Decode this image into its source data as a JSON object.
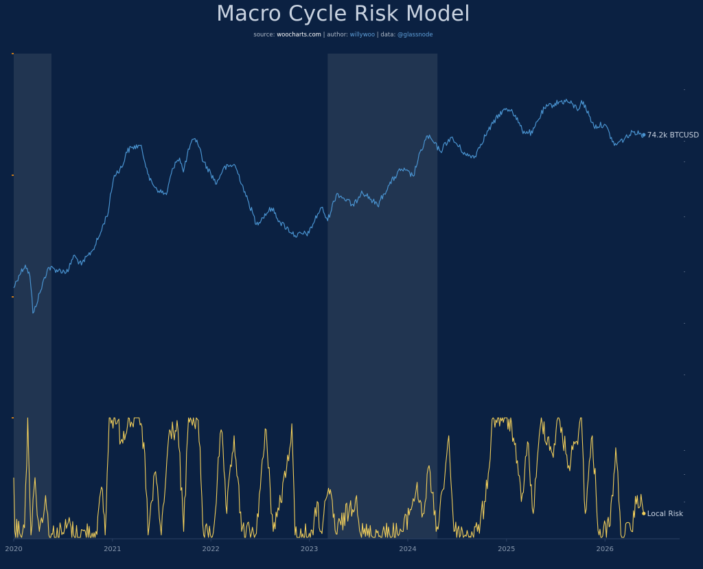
{
  "header": {
    "title": "Macro Cycle Risk Model",
    "subtitle": {
      "source_label": "source: ",
      "source_value": "woocharts.com",
      "sep1": " | author: ",
      "author_value": "willywoo",
      "sep2": " | data: ",
      "data_value": "@glassnode"
    }
  },
  "colors": {
    "background": "#0b2142",
    "price_line": "#4a94d1",
    "risk_line": "#f2cf5b",
    "shaded_region": "#213551",
    "axis_text": "#8898ad",
    "tick_marks": "#c87a1a"
  },
  "chart_data": {
    "type": "line",
    "title": "Macro Cycle Risk Model",
    "x_axis": {
      "tick_labels": [
        "2020",
        "2021",
        "2022",
        "2023",
        "2024",
        "2025",
        "2026"
      ],
      "range": [
        "2020-01-01",
        "2026-12-31"
      ]
    },
    "shaded_regions": [
      {
        "start": "2020-01-01",
        "end": "2020-05-20"
      },
      {
        "start": "2023-03-10",
        "end": "2024-04-20"
      }
    ],
    "series": [
      {
        "name": "BTCUSD",
        "end_label": "74.2k BTCUSD",
        "scale": "log",
        "unit": "USD",
        "points": [
          [
            "2020-01-01",
            7200
          ],
          [
            "2020-01-20",
            8700
          ],
          [
            "2020-02-13",
            10200
          ],
          [
            "2020-03-01",
            8600
          ],
          [
            "2020-03-12",
            4900
          ],
          [
            "2020-03-16",
            5000
          ],
          [
            "2020-04-10",
            6900
          ],
          [
            "2020-05-08",
            9800
          ],
          [
            "2020-06-15",
            9400
          ],
          [
            "2020-07-20",
            9200
          ],
          [
            "2020-08-10",
            11800
          ],
          [
            "2020-09-08",
            10200
          ],
          [
            "2020-10-21",
            12900
          ],
          [
            "2020-11-15",
            16000
          ],
          [
            "2020-12-17",
            23000
          ],
          [
            "2021-01-08",
            40000
          ],
          [
            "2021-02-08",
            46000
          ],
          [
            "2021-02-21",
            57000
          ],
          [
            "2021-03-13",
            61000
          ],
          [
            "2021-04-14",
            63000
          ],
          [
            "2021-05-19",
            37000
          ],
          [
            "2021-06-22",
            31500
          ],
          [
            "2021-07-20",
            29800
          ],
          [
            "2021-08-22",
            49000
          ],
          [
            "2021-09-07",
            52000
          ],
          [
            "2021-09-21",
            42000
          ],
          [
            "2021-10-20",
            66000
          ],
          [
            "2021-11-10",
            68500
          ],
          [
            "2021-12-04",
            49000
          ],
          [
            "2022-01-22",
            35000
          ],
          [
            "2022-02-15",
            44000
          ],
          [
            "2022-03-28",
            47300
          ],
          [
            "2022-05-11",
            29000
          ],
          [
            "2022-06-18",
            18900
          ],
          [
            "2022-08-14",
            24300
          ],
          [
            "2022-09-15",
            19500
          ],
          [
            "2022-11-09",
            16000
          ],
          [
            "2022-12-31",
            16600
          ],
          [
            "2023-02-15",
            24500
          ],
          [
            "2023-03-10",
            20000
          ],
          [
            "2023-04-14",
            30400
          ],
          [
            "2023-06-15",
            25000
          ],
          [
            "2023-07-14",
            31500
          ],
          [
            "2023-09-11",
            25100
          ],
          [
            "2023-10-24",
            34500
          ],
          [
            "2023-12-08",
            44000
          ],
          [
            "2024-01-22",
            39500
          ],
          [
            "2024-03-14",
            73000
          ],
          [
            "2024-05-01",
            57500
          ],
          [
            "2024-06-07",
            71000
          ],
          [
            "2024-08-05",
            54000
          ],
          [
            "2024-09-06",
            53500
          ],
          [
            "2024-11-12",
            88000
          ],
          [
            "2024-12-17",
            107000
          ],
          [
            "2025-01-20",
            109000
          ],
          [
            "2025-02-28",
            79000
          ],
          [
            "2025-04-07",
            76000
          ],
          [
            "2025-05-22",
            111000
          ],
          [
            "2025-07-14",
            122000
          ],
          [
            "2025-08-14",
            124000
          ],
          [
            "2025-09-25",
            109000
          ],
          [
            "2025-10-06",
            125000
          ],
          [
            "2025-11-21",
            84000
          ],
          [
            "2025-12-30",
            87000
          ],
          [
            "2026-02-05",
            63000
          ],
          [
            "2026-03-15",
            70000
          ],
          [
            "2026-04-20",
            78000
          ],
          [
            "2026-05-25",
            74200
          ]
        ]
      },
      {
        "name": "Local Risk",
        "end_label": "Local Risk",
        "scale": "linear",
        "ylim": [
          0,
          1
        ],
        "points": [
          [
            "2020-01-01",
            0.5
          ],
          [
            "2020-01-05",
            0.05
          ],
          [
            "2020-02-10",
            0.08
          ],
          [
            "2020-02-22",
            1.0
          ],
          [
            "2020-03-05",
            0.02
          ],
          [
            "2020-03-20",
            0.5
          ],
          [
            "2020-04-05",
            0.05
          ],
          [
            "2020-04-28",
            0.35
          ],
          [
            "2020-05-10",
            0.02
          ],
          [
            "2020-07-01",
            0.04
          ],
          [
            "2020-07-28",
            0.12
          ],
          [
            "2020-08-10",
            0.02
          ],
          [
            "2020-11-01",
            0.05
          ],
          [
            "2020-11-25",
            0.4
          ],
          [
            "2020-12-05",
            0.02
          ],
          [
            "2020-12-20",
            1.0
          ],
          [
            "2021-01-10",
            1.0
          ],
          [
            "2021-02-05",
            0.82
          ],
          [
            "2021-03-01",
            1.0
          ],
          [
            "2021-04-10",
            1.0
          ],
          [
            "2021-05-01",
            0.7
          ],
          [
            "2021-05-13",
            0.02
          ],
          [
            "2021-06-10",
            0.55
          ],
          [
            "2021-07-01",
            0.02
          ],
          [
            "2021-08-01",
            0.9
          ],
          [
            "2021-09-01",
            0.9
          ],
          [
            "2021-09-22",
            0.05
          ],
          [
            "2021-10-10",
            1.0
          ],
          [
            "2021-11-15",
            0.98
          ],
          [
            "2021-12-05",
            0.02
          ],
          [
            "2022-01-10",
            0.04
          ],
          [
            "2022-02-08",
            0.9
          ],
          [
            "2022-03-01",
            0.2
          ],
          [
            "2022-03-28",
            0.85
          ],
          [
            "2022-04-25",
            0.05
          ],
          [
            "2022-06-15",
            0.02
          ],
          [
            "2022-07-25",
            0.9
          ],
          [
            "2022-08-20",
            0.05
          ],
          [
            "2022-10-05",
            0.5
          ],
          [
            "2022-10-28",
            0.95
          ],
          [
            "2022-11-09",
            0.02
          ],
          [
            "2023-01-15",
            0.02
          ],
          [
            "2023-01-30",
            0.3
          ],
          [
            "2023-02-10",
            0.05
          ],
          [
            "2023-03-20",
            0.4
          ],
          [
            "2023-04-10",
            0.03
          ],
          [
            "2023-06-25",
            0.35
          ],
          [
            "2023-07-10",
            0.03
          ],
          [
            "2023-10-25",
            0.03
          ],
          [
            "2023-12-15",
            0.05
          ],
          [
            "2024-02-01",
            0.4
          ],
          [
            "2024-03-01",
            0.2
          ],
          [
            "2024-03-20",
            0.6
          ],
          [
            "2024-04-15",
            0.05
          ],
          [
            "2024-05-10",
            0.4
          ],
          [
            "2024-06-01",
            0.85
          ],
          [
            "2024-06-20",
            0.05
          ],
          [
            "2024-08-01",
            0.02
          ],
          [
            "2024-09-15",
            0.05
          ],
          [
            "2024-10-15",
            0.3
          ],
          [
            "2024-11-12",
            1.0
          ],
          [
            "2024-12-17",
            1.0
          ],
          [
            "2025-01-20",
            0.95
          ],
          [
            "2025-02-25",
            0.3
          ],
          [
            "2025-03-20",
            0.8
          ],
          [
            "2025-04-10",
            0.2
          ],
          [
            "2025-05-10",
            1.0
          ],
          [
            "2025-06-20",
            0.7
          ],
          [
            "2025-07-14",
            1.0
          ],
          [
            "2025-08-20",
            0.6
          ],
          [
            "2025-09-15",
            0.8
          ],
          [
            "2025-10-06",
            1.0
          ],
          [
            "2025-10-20",
            0.2
          ],
          [
            "2025-11-15",
            0.85
          ],
          [
            "2025-12-10",
            0.02
          ],
          [
            "2026-01-20",
            0.1
          ],
          [
            "2026-02-10",
            0.75
          ],
          [
            "2026-03-01",
            0.02
          ],
          [
            "2026-04-10",
            0.05
          ],
          [
            "2026-05-01",
            0.35
          ],
          [
            "2026-05-25",
            0.2
          ]
        ]
      }
    ]
  }
}
